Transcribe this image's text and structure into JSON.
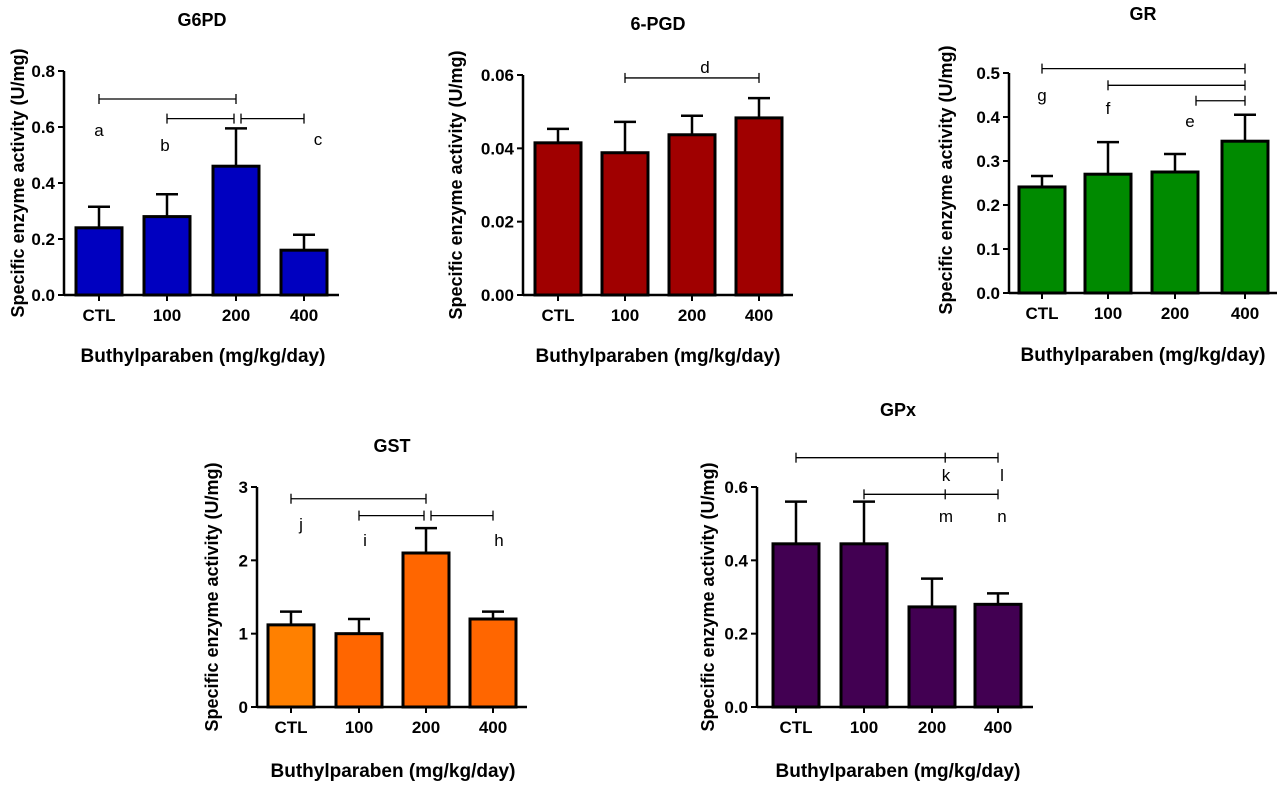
{
  "chart_data": [
    {
      "type": "bar",
      "title": "G6PD",
      "xlabel": "Buthylparaben (mg/kg/day)",
      "ylabel": "Specific enzyme activity (U/mg)",
      "categories": [
        "CTL",
        "100",
        "200",
        "400"
      ],
      "values": [
        0.24,
        0.28,
        0.46,
        0.16
      ],
      "errors": [
        0.075,
        0.08,
        0.135,
        0.055
      ],
      "ylim": [
        0,
        0.8
      ],
      "yticks": [
        "0.0",
        "0.2",
        "0.4",
        "0.6",
        "0.8"
      ],
      "colors": [
        "#0000c0",
        "#0000c0",
        "#0000c0",
        "#0000c0"
      ],
      "brackets": [
        {
          "from": 0,
          "to": 2,
          "y": 0.7
        },
        {
          "from": 1,
          "to": 2,
          "y": 0.63
        },
        {
          "from": 2,
          "to": 3,
          "y": 0.63
        }
      ],
      "letters": [
        "a",
        "b",
        "c"
      ]
    },
    {
      "type": "bar",
      "title": "6-PGD",
      "xlabel": "Buthylparaben (mg/kg/day)",
      "ylabel": "Specific enzyme activity (U/mg)",
      "categories": [
        "CTL",
        "100",
        "200",
        "400"
      ],
      "values": [
        0.0415,
        0.0388,
        0.0437,
        0.0483
      ],
      "errors": [
        0.0038,
        0.0084,
        0.0052,
        0.0054
      ],
      "ylim": [
        0,
        0.06
      ],
      "yticks": [
        "0.00",
        "0.02",
        "0.04",
        "0.06"
      ],
      "colors": [
        "#a00000",
        "#a00000",
        "#a00000",
        "#a00000"
      ],
      "brackets": [
        {
          "from": 1,
          "to": 3,
          "y": 0.0592
        }
      ],
      "letters": [
        "d"
      ]
    },
    {
      "type": "bar",
      "title": "GR",
      "xlabel": "Buthylparaben (mg/kg/day)",
      "ylabel": "Specific enzyme activity (U/mg)",
      "categories": [
        "CTL",
        "100",
        "200",
        "400"
      ],
      "values": [
        0.241,
        0.27,
        0.275,
        0.345
      ],
      "errors": [
        0.025,
        0.073,
        0.041,
        0.06
      ],
      "ylim": [
        0,
        0.5
      ],
      "yticks": [
        "0.0",
        "0.1",
        "0.2",
        "0.3",
        "0.4",
        "0.5"
      ],
      "colors": [
        "#008a00",
        "#008a00",
        "#008a00",
        "#008a00"
      ],
      "brackets": [
        {
          "from": 0,
          "to": 3,
          "y": 0.51
        },
        {
          "from": 1,
          "to": 3,
          "y": 0.472
        },
        {
          "from": 2.3,
          "to": 3,
          "y": 0.437
        }
      ],
      "letters": [
        "g",
        "f",
        "e"
      ]
    },
    {
      "type": "bar",
      "title": "GST",
      "xlabel": "Buthylparaben (mg/kg/day)",
      "ylabel": "Specific enzyme activity (U/mg)",
      "categories": [
        "CTL",
        "100",
        "200",
        "400"
      ],
      "values": [
        1.12,
        1.0,
        2.1,
        1.2
      ],
      "errors": [
        0.18,
        0.2,
        0.34,
        0.1
      ],
      "ylim": [
        0,
        3
      ],
      "yticks": [
        "0",
        "1",
        "2",
        "3"
      ],
      "colors": [
        "#ff8000",
        "#ff6600",
        "#ff6600",
        "#ff6600"
      ],
      "brackets": [
        {
          "from": 0,
          "to": 2,
          "y": 2.84
        },
        {
          "from": 1,
          "to": 2,
          "y": 2.61
        },
        {
          "from": 2,
          "to": 3,
          "y": 2.61
        }
      ],
      "letters": [
        "j",
        "i",
        "h"
      ]
    },
    {
      "type": "bar",
      "title": "GPx",
      "xlabel": "Buthylparaben (mg/kg/day)",
      "ylabel": "Specific enzyme activity (U/mg)",
      "categories": [
        "CTL",
        "100",
        "200",
        "400"
      ],
      "values": [
        0.445,
        0.445,
        0.273,
        0.28
      ],
      "errors": [
        0.115,
        0.115,
        0.077,
        0.03
      ],
      "ylim": [
        0,
        0.6
      ],
      "yticks": [
        "0.0",
        "0.2",
        "0.4",
        "0.6"
      ],
      "colors": [
        "#420052",
        "#420052",
        "#420052",
        "#420052"
      ],
      "brackets": [
        {
          "from": 0,
          "to": 3,
          "y": 0.68,
          "tick": 2.2
        },
        {
          "from": 1,
          "to": 3,
          "y": 0.58,
          "tick": 2.2
        }
      ],
      "letters": [
        "k",
        "l",
        "m",
        "n"
      ]
    }
  ]
}
